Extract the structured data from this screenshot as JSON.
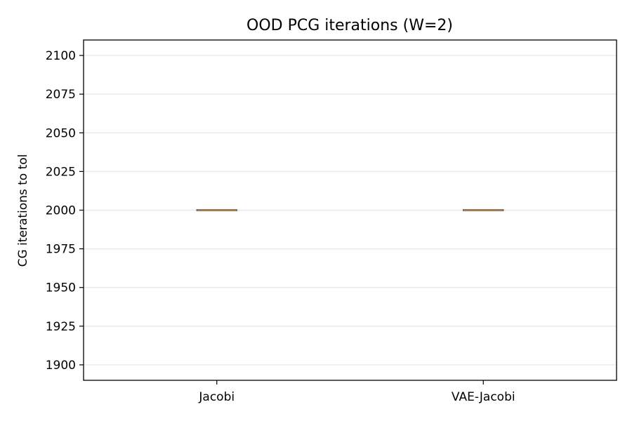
{
  "chart_data": {
    "type": "box",
    "title": "OOD PCG iterations (W=2)",
    "xlabel": "",
    "ylabel": "CG iterations to tol",
    "categories": [
      "Jacobi",
      "VAE-Jacobi"
    ],
    "boxes": [
      {
        "category": "Jacobi",
        "min": 2000,
        "q1": 2000,
        "median": 2000,
        "q3": 2000,
        "max": 2000
      },
      {
        "category": "VAE-Jacobi",
        "min": 2000,
        "q1": 2000,
        "median": 2000,
        "q3": 2000,
        "max": 2000
      }
    ],
    "ylim": [
      1890,
      2110
    ],
    "yticks": [
      1900,
      1925,
      1950,
      1975,
      2000,
      2025,
      2050,
      2075,
      2100
    ],
    "grid": "horizontal",
    "colors": {
      "median": "#ff7f0e",
      "box": "#000000",
      "grid": "#e6e6e6"
    }
  }
}
